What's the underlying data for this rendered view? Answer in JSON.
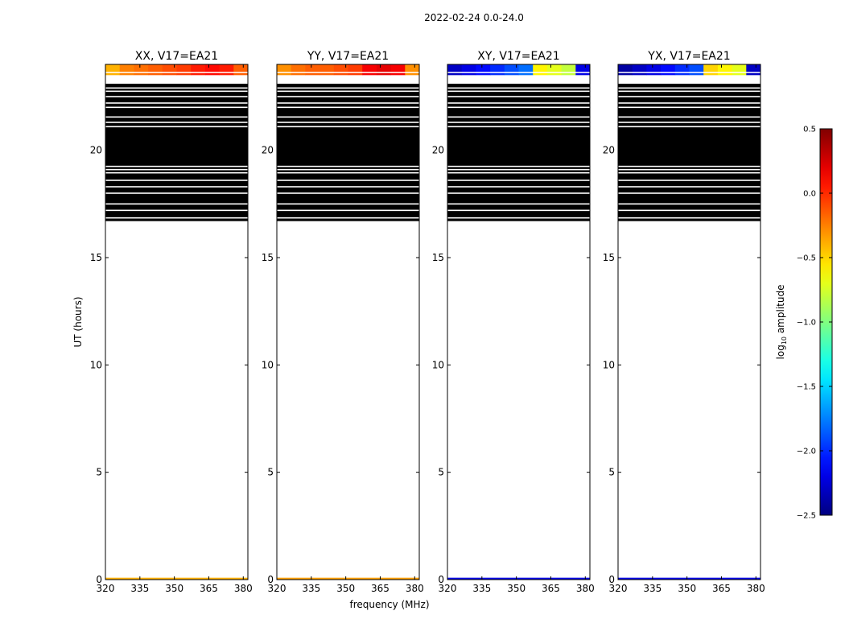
{
  "chart_data": {
    "type": "heatmap",
    "suptitle": "2022-02-24 0.0-24.0",
    "xlabel": "frequency (MHz)",
    "ylabel": "UT (hours)",
    "xlim": [
      320,
      382
    ],
    "ylim": [
      0,
      24
    ],
    "xticks": [
      320,
      335,
      350,
      365,
      380
    ],
    "yticks": [
      0,
      5,
      10,
      15,
      20
    ],
    "xtick_labels": [
      "320",
      "335",
      "350",
      "365",
      "380"
    ],
    "ytick_labels": [
      "0",
      "5",
      "10",
      "15",
      "20"
    ],
    "colorbar": {
      "label": "log10 amplitude",
      "label_main": "log",
      "label_sub": "10",
      "label_rest": " amplitude",
      "range": [
        -2.5,
        0.5
      ],
      "colormap": "jet",
      "ticks": [
        0.5,
        0.0,
        -0.5,
        -1.0,
        -1.5,
        -2.0,
        -2.5
      ],
      "tick_labels": [
        "0.5",
        "0.0",
        "−0.5",
        "−1.0",
        "−1.5",
        "−2.0",
        "−2.5"
      ]
    },
    "data_blocks": {
      "top_band_hours": [
        23.5,
        24.0
      ],
      "flag_region_hours": [
        16.7,
        23.1
      ],
      "white_line_hours": [
        16.85,
        17.2,
        17.5,
        18.0,
        18.3,
        18.6,
        18.95,
        19.1,
        19.25,
        21.1,
        21.3,
        21.55,
        22.0,
        22.2,
        22.5,
        22.75,
        22.9
      ],
      "bottom_strip_hours": [
        0.0,
        0.05
      ]
    },
    "panels": [
      {
        "title": "XX, V17=EA21",
        "top_band_log_amplitude": [
          -0.4,
          -0.25,
          -0.2,
          -0.15,
          -0.1,
          -0.05,
          0.05,
          0.1,
          0.05,
          -0.15
        ],
        "bottom_log_amplitude": -0.4
      },
      {
        "title": "YY, V17=EA21",
        "top_band_log_amplitude": [
          -0.3,
          -0.2,
          -0.15,
          -0.15,
          -0.1,
          -0.05,
          0.15,
          0.2,
          0.15,
          -0.3
        ],
        "bottom_log_amplitude": -0.35
      },
      {
        "title": "XY, V17=EA21",
        "top_band_log_amplitude": [
          -2.3,
          -2.2,
          -2.1,
          -2.0,
          -1.9,
          -1.8,
          -0.6,
          -0.7,
          -0.8,
          -2.2
        ],
        "bottom_log_amplitude": -2.2
      },
      {
        "title": "YX, V17=EA21",
        "top_band_log_amplitude": [
          -2.4,
          -2.3,
          -2.2,
          -2.1,
          -2.0,
          -1.9,
          -0.5,
          -0.6,
          -0.7,
          -2.3
        ],
        "bottom_log_amplitude": -2.2
      }
    ]
  }
}
